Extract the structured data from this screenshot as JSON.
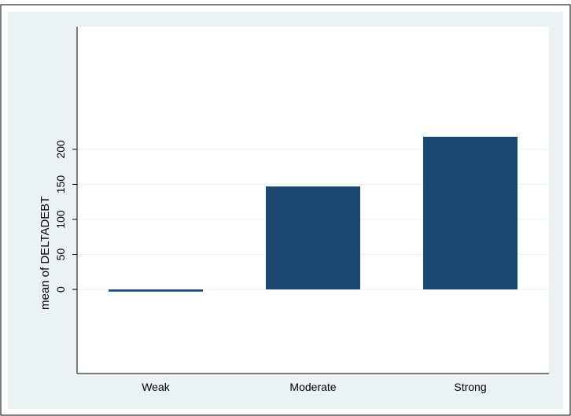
{
  "chart_data": {
    "type": "bar",
    "title": "",
    "xlabel": "",
    "ylabel": "mean of DELTADEBT",
    "categories": [
      "Weak",
      "Moderate",
      "Strong"
    ],
    "values": [
      -3,
      147,
      218
    ],
    "yticks": [
      0,
      50,
      100,
      150,
      200
    ],
    "ylim": [
      -120,
      375
    ],
    "grid": true,
    "legend": "none",
    "colors": {
      "bar": "#1a476f",
      "plot_background": "#ffffff",
      "outer_background": "#eaf2f3",
      "gridline": "#eaf2f3",
      "axis": "#000000"
    }
  }
}
